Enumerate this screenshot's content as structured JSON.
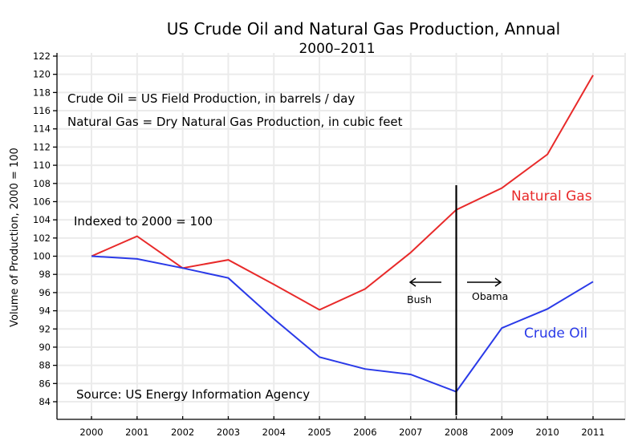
{
  "chart_data": {
    "type": "line",
    "title": "US Crude Oil and Natural Gas Production, Annual",
    "subtitle": "2000–2011",
    "xlabel": "",
    "ylabel": "Volume of Production, 2000 = 100",
    "x": [
      2000,
      2001,
      2002,
      2003,
      2004,
      2005,
      2006,
      2007,
      2008,
      2009,
      2010,
      2011
    ],
    "x_tick_labels": [
      "2000",
      "2001",
      "2002",
      "2003",
      "2004",
      "2005",
      "2006",
      "2007",
      "2008",
      "2009",
      "2010",
      "2011"
    ],
    "ylim": [
      82,
      122
    ],
    "y_ticks": [
      84,
      86,
      88,
      90,
      92,
      94,
      96,
      98,
      100,
      102,
      104,
      106,
      108,
      110,
      112,
      114,
      116,
      118,
      120,
      122
    ],
    "grid": true,
    "series": [
      {
        "name": "Natural Gas",
        "color": "#e82a2a",
        "values": [
          100.0,
          102.2,
          98.7,
          99.6,
          96.9,
          94.1,
          96.4,
          100.4,
          105.1,
          107.5,
          111.2,
          119.9
        ]
      },
      {
        "name": "Crude Oil",
        "color": "#2a3ae8",
        "values": [
          100.0,
          99.7,
          98.7,
          97.6,
          93.1,
          88.9,
          87.6,
          87.0,
          85.1,
          92.1,
          94.2,
          97.2
        ]
      }
    ],
    "annotations": {
      "definition_oil": "Crude Oil = US Field Production, in barrels / day",
      "definition_gas": "Natural Gas = Dry Natural Gas Production, in cubic feet",
      "index_note": "Indexed to 2000 = 100",
      "source": "Source: US Energy Information Agency",
      "series_label_gas": "Natural Gas",
      "series_label_oil": "Crude Oil",
      "divider_year": 2008,
      "divider_range": [
        82.5,
        107.8
      ],
      "left_era": "Bush",
      "right_era": "Obama"
    }
  }
}
